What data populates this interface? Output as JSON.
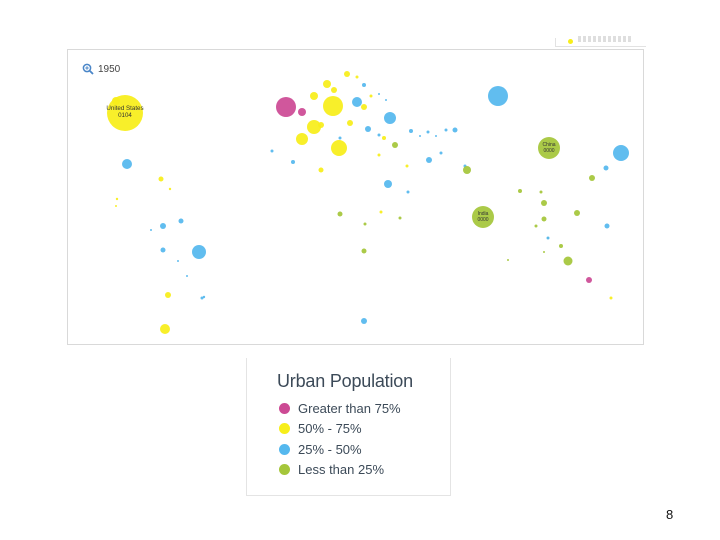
{
  "slide": {
    "page_number": "8"
  },
  "map": {
    "year_label": "1950",
    "zoom_icon": "zoom-in-icon",
    "annotations": [
      {
        "id": "united-states",
        "lines": [
          "United States",
          "0104"
        ]
      },
      {
        "id": "china",
        "lines": [
          "China",
          "0000"
        ]
      },
      {
        "id": "india",
        "lines": [
          "India",
          "0000"
        ]
      }
    ]
  },
  "legend": {
    "title": "Urban Population",
    "items": [
      {
        "label": "Greater than 75%",
        "color": "#cc4a94",
        "category": "gt75"
      },
      {
        "label": "50% - 75%",
        "color": "#f7ee1a",
        "category": "50to75"
      },
      {
        "label": "25% - 50%",
        "color": "#55b8ee",
        "category": "25to50"
      },
      {
        "label": "Less than 25%",
        "color": "#a5c63a",
        "category": "lt25"
      }
    ]
  }
}
